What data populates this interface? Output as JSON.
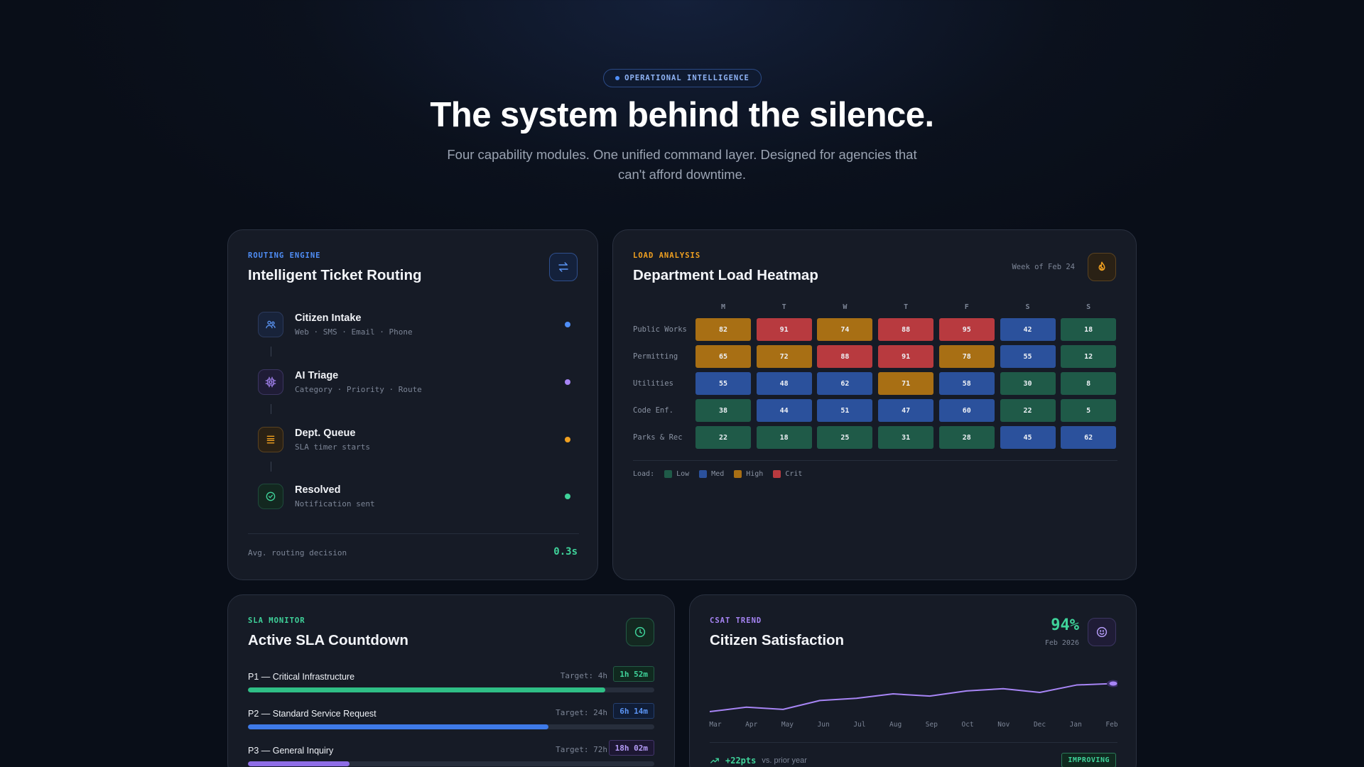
{
  "hero": {
    "badge": "OPERATIONAL INTELLIGENCE",
    "title": "The system behind the silence.",
    "subtitle": "Four capability modules. One unified command layer. Designed for agencies that can't afford downtime."
  },
  "routing": {
    "eyebrow": "ROUTING ENGINE",
    "title": "Intelligent Ticket Routing",
    "icon": "swap-arrows-icon",
    "accent": "#4f8ef7",
    "steps": [
      {
        "name": "Citizen Intake",
        "sub": "Web · SMS · Email · Phone",
        "icon": "users-icon",
        "color": "#4f8ef7"
      },
      {
        "name": "AI Triage",
        "sub": "Category · Priority · Route",
        "icon": "cpu-icon",
        "color": "#a785f5"
      },
      {
        "name": "Dept. Queue",
        "sub": "SLA timer starts",
        "icon": "layers-icon",
        "color": "#f0a020"
      },
      {
        "name": "Resolved",
        "sub": "Notification sent",
        "icon": "check-circle-icon",
        "color": "#3fd39a"
      }
    ],
    "avg_label": "Avg. routing decision",
    "avg_value": "0.3s"
  },
  "heatmap": {
    "eyebrow": "LOAD ANALYSIS",
    "title": "Department Load Heatmap",
    "week": "Week of Feb 24",
    "icon": "flame-icon",
    "days": [
      "M",
      "T",
      "W",
      "T",
      "F",
      "S",
      "S"
    ],
    "rows": [
      {
        "label": "Public Works",
        "values": [
          82,
          91,
          74,
          88,
          95,
          42,
          18
        ]
      },
      {
        "label": "Permitting",
        "values": [
          65,
          72,
          88,
          91,
          78,
          55,
          12
        ]
      },
      {
        "label": "Utilities",
        "values": [
          55,
          48,
          62,
          71,
          58,
          30,
          8
        ]
      },
      {
        "label": "Code Enf.",
        "values": [
          38,
          44,
          51,
          47,
          60,
          22,
          5
        ]
      },
      {
        "label": "Parks & Rec",
        "values": [
          22,
          18,
          25,
          31,
          28,
          45,
          62
        ]
      }
    ],
    "legend_label": "Load:",
    "legend": [
      {
        "name": "Low",
        "color": "#1f5a48"
      },
      {
        "name": "Med",
        "color": "#2b519c"
      },
      {
        "name": "High",
        "color": "#a86f14"
      },
      {
        "name": "Crit",
        "color": "#b83a3f"
      }
    ]
  },
  "sla": {
    "eyebrow": "SLA MONITOR",
    "title": "Active SLA Countdown",
    "icon": "clock-icon",
    "rows": [
      {
        "name": "P1 — Critical Infrastructure",
        "target": "Target: 4h",
        "time": "1h 52m",
        "progress": 0.88,
        "color": "#2fbf86",
        "text_color": "#3fd39a",
        "bg": "#10291f",
        "border": "#235b45"
      },
      {
        "name": "P2 — Standard Service Request",
        "target": "Target: 24h",
        "time": "6h 14m",
        "progress": 0.74,
        "color": "#3e7ae8",
        "text_color": "#5b95f5",
        "bg": "#101d36",
        "border": "#24406f"
      },
      {
        "name": "P3 — General Inquiry",
        "target": "Target: 72h",
        "time": "18h 02m",
        "progress": 0.25,
        "color": "#8e6de6",
        "text_color": "#b59cf7",
        "bg": "#1d1733",
        "border": "#43366b"
      }
    ]
  },
  "csat": {
    "eyebrow": "CSAT TREND",
    "title": "Citizen Satisfaction",
    "icon": "smile-icon",
    "value": "94%",
    "value_sub": "Feb 2026",
    "months": [
      "Mar",
      "Apr",
      "May",
      "Jun",
      "Jul",
      "Aug",
      "Sep",
      "Oct",
      "Nov",
      "Dec",
      "Jan",
      "Feb"
    ],
    "trend": [
      0.0,
      0.12,
      0.06,
      0.3,
      0.36,
      0.48,
      0.42,
      0.56,
      0.62,
      0.52,
      0.72,
      0.76
    ],
    "delta_value": "+22pts",
    "delta_label": "vs. prior year",
    "status": "IMPROVING",
    "line_color": "#a785f5"
  }
}
